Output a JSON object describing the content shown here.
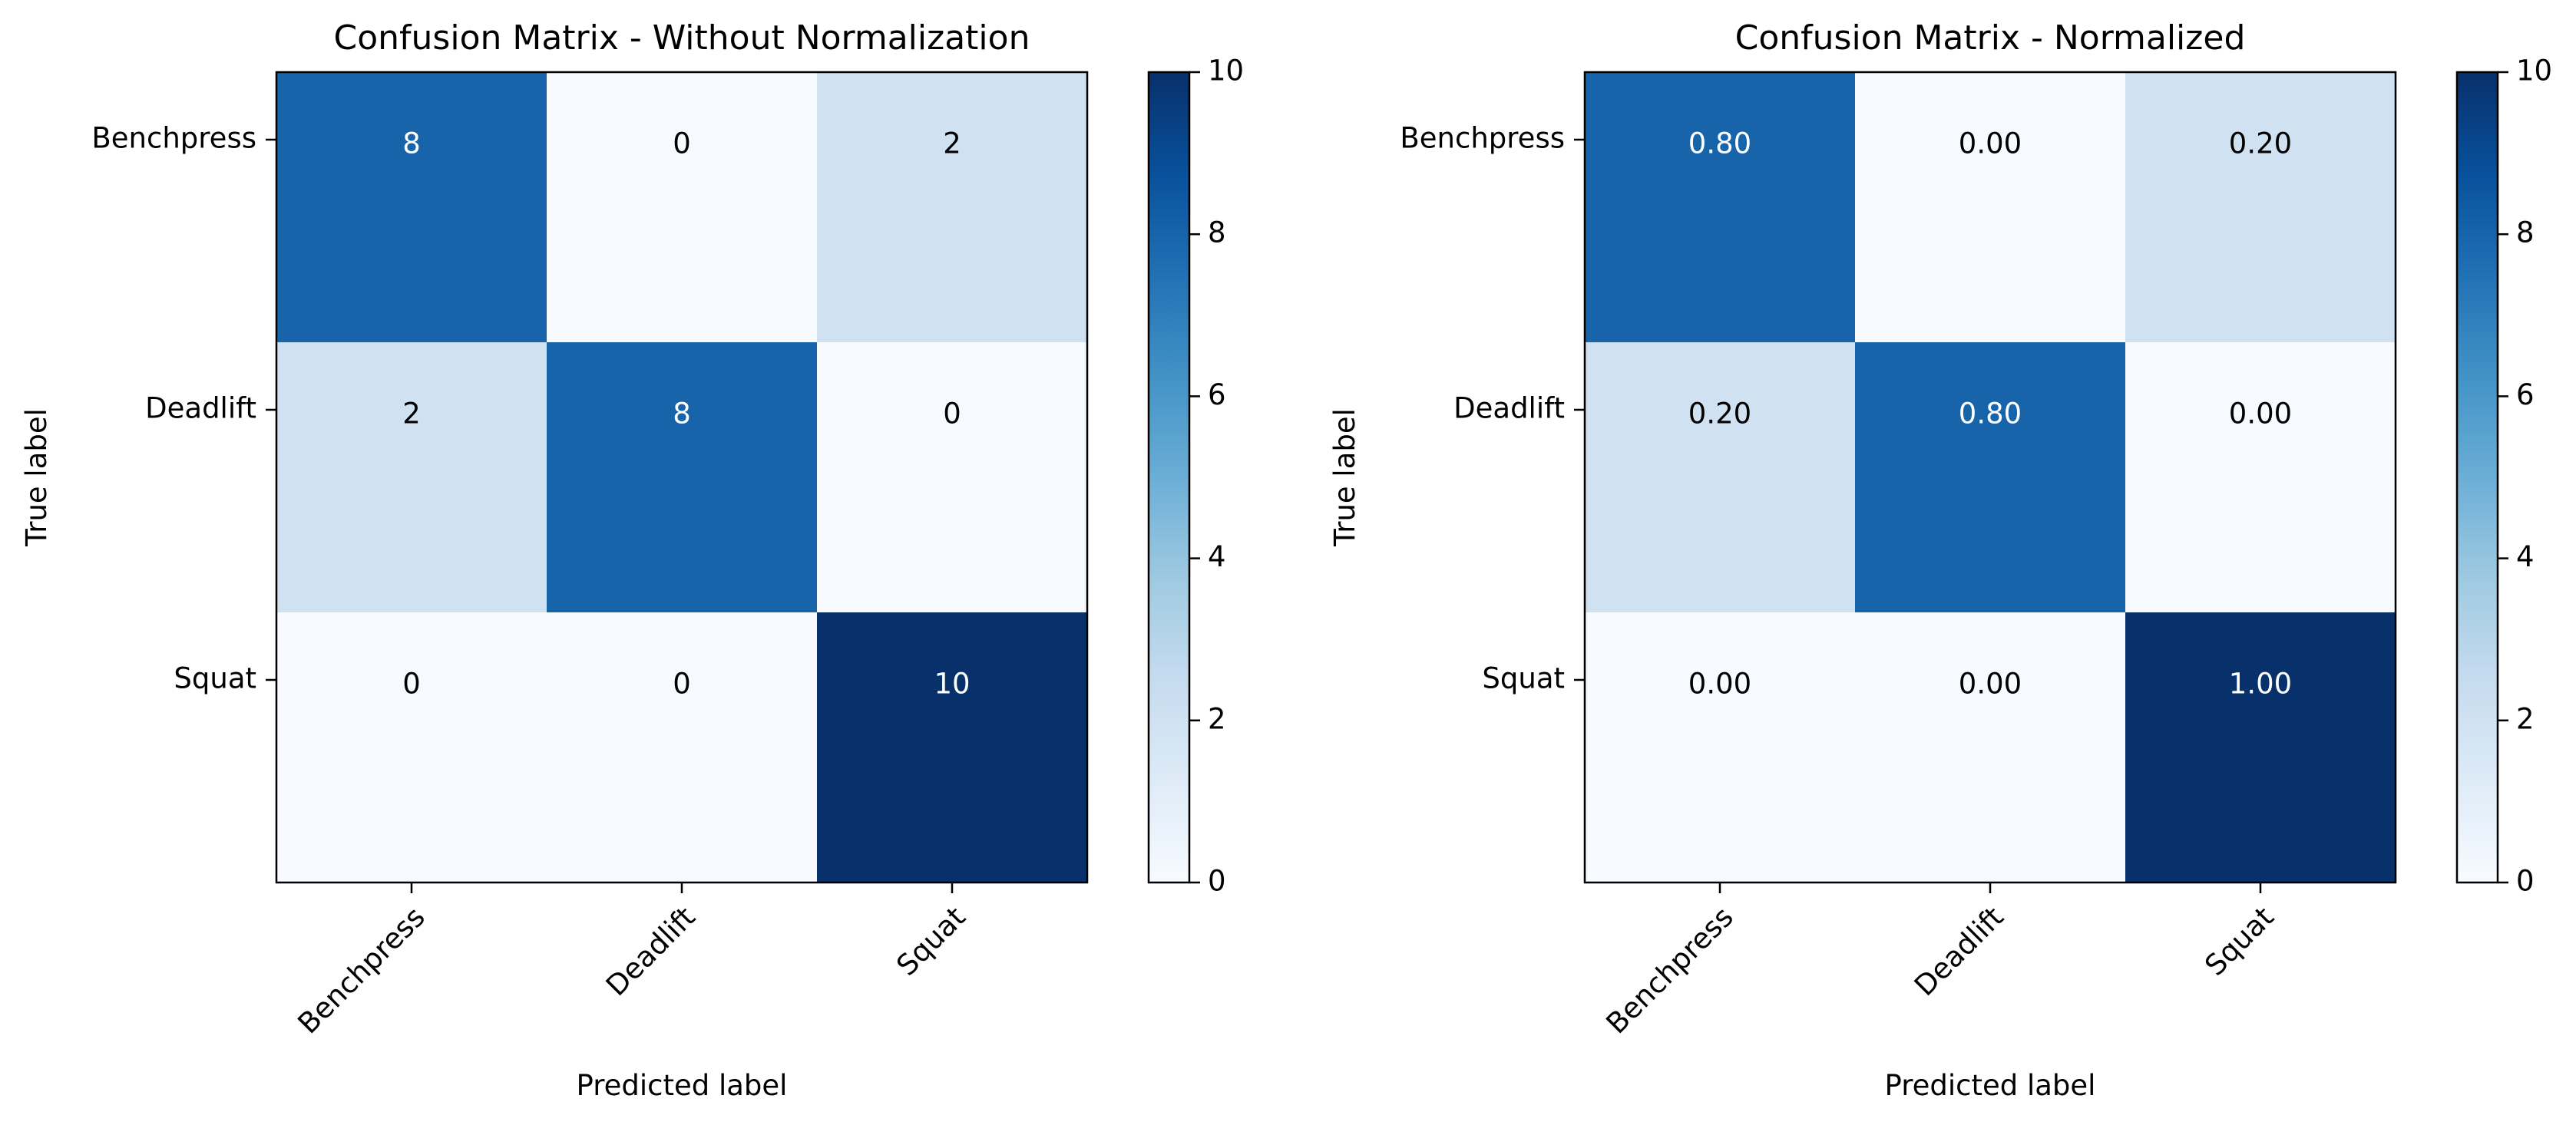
{
  "chart_data": [
    {
      "type": "heatmap",
      "title": "Confusion Matrix - Without Normalization",
      "xlabel": "Predicted label",
      "ylabel": "True label",
      "x_categories": [
        "Benchpress",
        "Deadlift",
        "Squat"
      ],
      "y_categories": [
        "Benchpress",
        "Deadlift",
        "Squat"
      ],
      "values": [
        [
          8,
          0,
          2
        ],
        [
          2,
          8,
          0
        ],
        [
          0,
          0,
          10
        ]
      ],
      "cell_labels": [
        [
          "8",
          "0",
          "2"
        ],
        [
          "2",
          "8",
          "0"
        ],
        [
          "0",
          "0",
          "10"
        ]
      ],
      "color_scale": {
        "vmin": 0,
        "vmax": 10,
        "colormap": "Blues",
        "ticks": [
          "0",
          "2",
          "4",
          "6",
          "8",
          "10"
        ]
      },
      "grid": false
    },
    {
      "type": "heatmap",
      "title": "Confusion Matrix - Normalized",
      "xlabel": "Predicted label",
      "ylabel": "True label",
      "x_categories": [
        "Benchpress",
        "Deadlift",
        "Squat"
      ],
      "y_categories": [
        "Benchpress",
        "Deadlift",
        "Squat"
      ],
      "values": [
        [
          0.8,
          0.0,
          0.2
        ],
        [
          0.2,
          0.8,
          0.0
        ],
        [
          0.0,
          0.0,
          1.0
        ]
      ],
      "cell_labels": [
        [
          "0.80",
          "0.00",
          "0.20"
        ],
        [
          "0.20",
          "0.80",
          "0.00"
        ],
        [
          "0.00",
          "0.00",
          "1.00"
        ]
      ],
      "color_scale": {
        "vmin": 0,
        "vmax": 10,
        "colormap": "Blues",
        "ticks": [
          "0",
          "2",
          "4",
          "6",
          "8",
          "10"
        ]
      },
      "grid": false
    }
  ]
}
